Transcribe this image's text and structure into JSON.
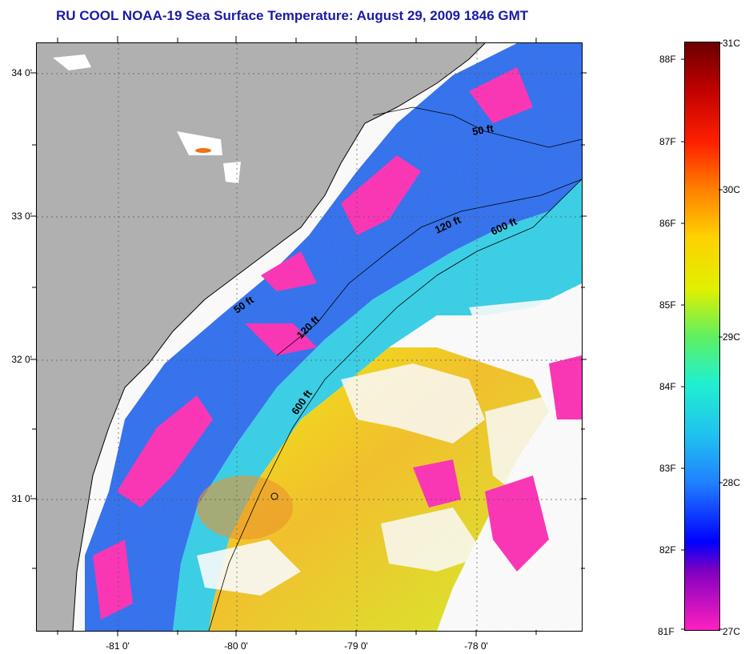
{
  "title": "RU COOL  NOAA-19  Sea Surface Temperature:  August 29, 2009 1846 GMT",
  "lat_labels": [
    "34 0'",
    "33 0'",
    "32 0'",
    "31 0'"
  ],
  "lon_labels": [
    "-81 0'",
    "-80 0'",
    "-79 0'",
    "-78 0'"
  ],
  "contours": {
    "c50_a": "50 ft",
    "c50_b": "50 ft",
    "c120_a": "120 ft",
    "c120_b": "120 ft",
    "c600_a": "600 ft",
    "c600_b": "600 ft"
  },
  "colorbar": {
    "fahrenheit": [
      "88F",
      "87F",
      "86F",
      "85F",
      "84F",
      "83F",
      "82F",
      "81F"
    ],
    "celsius": [
      "31C",
      "30C",
      "29C",
      "28C",
      "27C"
    ]
  },
  "colors": {
    "title": "#1a1aa8",
    "land": "#b0b0b0",
    "no_data": "#ffffff",
    "cool": "#ff2ab4",
    "warm": "#f0f020"
  }
}
